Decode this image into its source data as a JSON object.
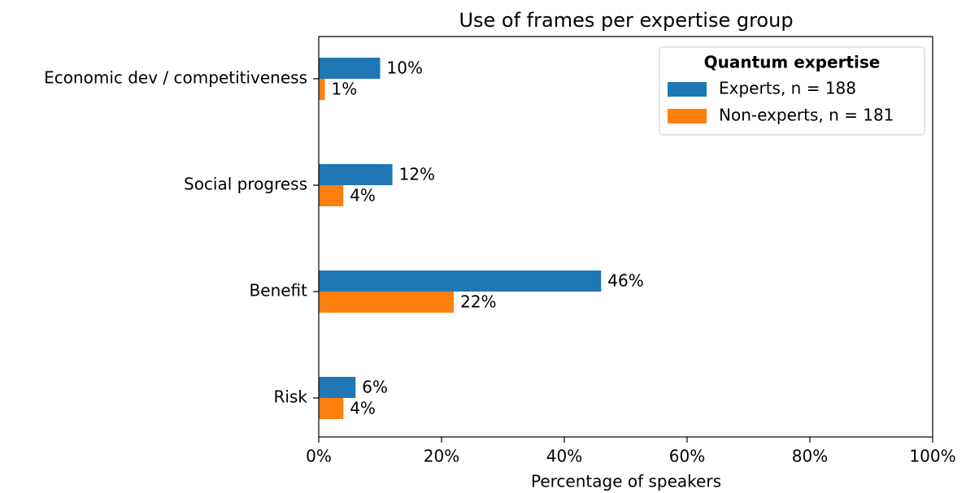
{
  "chart_data": {
    "type": "barh",
    "title": "Use of frames per expertise group",
    "xlabel": "Percentage of speakers",
    "categories": [
      "Economic dev / competitiveness",
      "Social progress",
      "Benefit",
      "Risk"
    ],
    "series": [
      {
        "name": "Experts, n = 188",
        "color": "#1f77b4",
        "values": [
          10,
          12,
          46,
          6
        ],
        "value_labels": [
          "10%",
          "12%",
          "46%",
          "6%"
        ]
      },
      {
        "name": "Non-experts, n = 181",
        "color": "#ff7f0e",
        "values": [
          1,
          4,
          22,
          4
        ],
        "value_labels": [
          "1%",
          "4%",
          "22%",
          "4%"
        ]
      }
    ],
    "xlim": [
      0,
      100
    ],
    "xticks": [
      {
        "value": 0,
        "label": "0%"
      },
      {
        "value": 20,
        "label": "20%"
      },
      {
        "value": 40,
        "label": "40%"
      },
      {
        "value": 60,
        "label": "60%"
      },
      {
        "value": 80,
        "label": "80%"
      },
      {
        "value": 100,
        "label": "100%"
      }
    ],
    "legend": {
      "title": "Quantum expertise",
      "loc": "upper right"
    },
    "grid": false
  }
}
